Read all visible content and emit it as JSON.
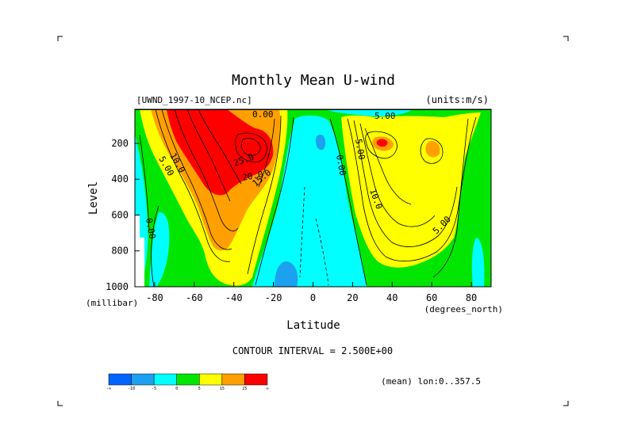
{
  "chart_data": {
    "type": "contour",
    "title": "Monthly Mean U-wind",
    "dataset": "[UWND_1997-10_NCEP.nc]",
    "units": "(units:m/s)",
    "xlabel": "Latitude",
    "ylabel": "Level",
    "x_units": "(degrees_north)",
    "y_units": "(millibar)",
    "x_ticks": [
      "-80",
      "-60",
      "-40",
      "-20",
      "0",
      "20",
      "40",
      "60",
      "80"
    ],
    "y_ticks": [
      "200",
      "400",
      "600",
      "800",
      "1000"
    ],
    "xlim": [
      -90,
      90
    ],
    "ylim": [
      1000,
      10
    ],
    "contour_interval_text": "CONTOUR INTERVAL = 2.500E+00",
    "averaging_text": "(mean) lon:0..357.5",
    "contour_labels": [
      {
        "text": "25.0",
        "lat": -36,
        "level": 290
      },
      {
        "text": "20.0",
        "lat": -32,
        "level": 380
      },
      {
        "text": "15.0",
        "lat": -28,
        "level": 440
      },
      {
        "text": "10.0",
        "lat": -72,
        "level": 280
      },
      {
        "text": "5.00",
        "lat": -82,
        "level": 320
      },
      {
        "text": "0.00",
        "lat": -83,
        "level": 660
      },
      {
        "text": "0.00",
        "lat": 12,
        "level": 300
      },
      {
        "text": "5.00",
        "lat": 24,
        "level": 200
      },
      {
        "text": "10.0",
        "lat": 32,
        "level": 520
      },
      {
        "text": "5.00",
        "lat": 66,
        "level": 580
      },
      {
        "text": "0.00",
        "lat": -30,
        "level": 30
      },
      {
        "text": "5.00",
        "lat": 30,
        "level": 30
      }
    ],
    "colorbar": {
      "colors": [
        "#0064ff",
        "#1ea0f0",
        "#00ffff",
        "#00e600",
        "#ffff00",
        "#ffa000",
        "#ff0000"
      ],
      "labels": [
        "-∞",
        "-10",
        "-5",
        "0",
        "5",
        "15",
        "25",
        "∞"
      ]
    }
  }
}
